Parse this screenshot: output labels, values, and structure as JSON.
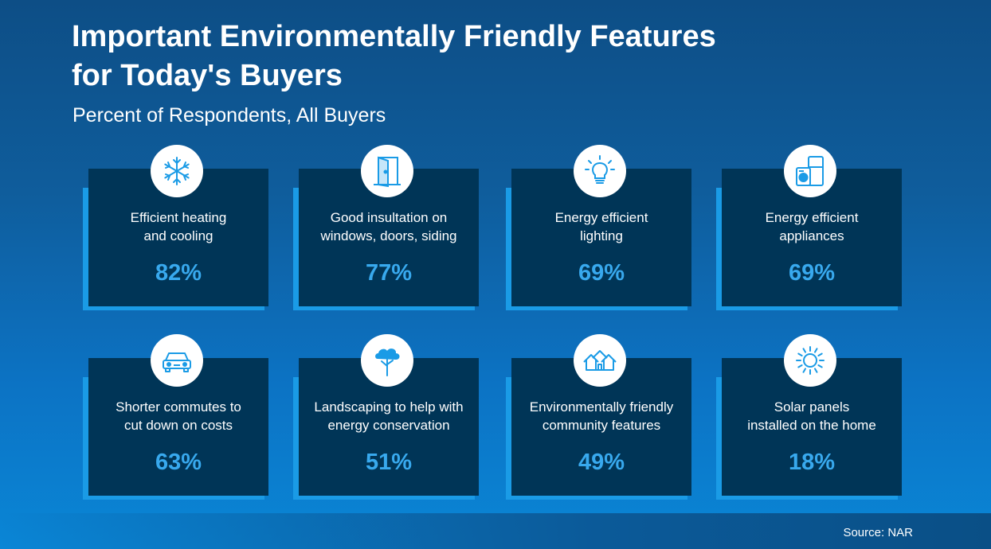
{
  "chart_data": {
    "type": "table",
    "title": "Important Environmentally Friendly Features\nfor Today's  Buyers",
    "subtitle": "Percent of Respondents, All Buyers",
    "items": [
      {
        "label": "Efficient heating\nand cooling",
        "value": 82,
        "value_label": "82%",
        "icon": "snowflake-icon"
      },
      {
        "label": "Good insultation on\nwindows, doors, siding",
        "value": 77,
        "value_label": "77%",
        "icon": "door-icon"
      },
      {
        "label": "Energy efficient\nlighting",
        "value": 69,
        "value_label": "69%",
        "icon": "lightbulb-icon"
      },
      {
        "label": "Energy efficient\nappliances",
        "value": 69,
        "value_label": "69%",
        "icon": "appliances-icon"
      },
      {
        "label": "Shorter commutes to\ncut down on costs",
        "value": 63,
        "value_label": "63%",
        "icon": "car-icon"
      },
      {
        "label": "Landscaping to help with\nenergy conservation",
        "value": 51,
        "value_label": "51%",
        "icon": "tree-icon"
      },
      {
        "label": "Environmentally friendly\ncommunity features",
        "value": 49,
        "value_label": "49%",
        "icon": "houses-icon"
      },
      {
        "label": "Solar panels\ninstalled on the home",
        "value": 18,
        "value_label": "18%",
        "icon": "sun-icon"
      }
    ],
    "source": "Source: NAR",
    "colors": {
      "card": "#003557",
      "accent": "#1a9be6",
      "value": "#38a9ee"
    }
  }
}
